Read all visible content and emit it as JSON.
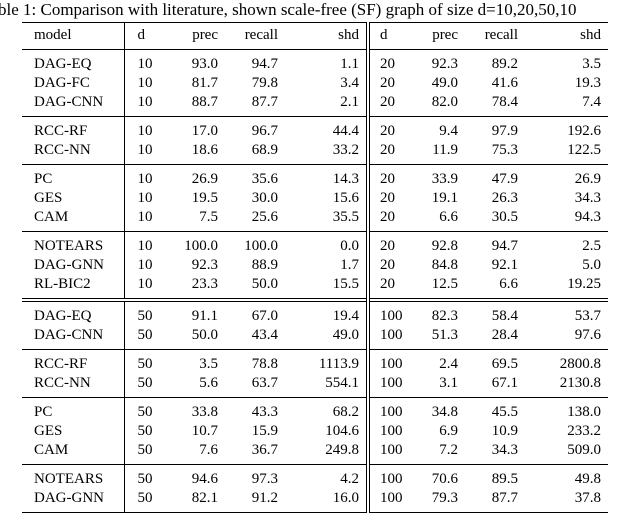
{
  "caption": "ble 1: Comparison with literature, shown scale-free (SF) graph of size d=10,20,50,10",
  "table": {
    "header": [
      "model",
      "d",
      "prec",
      "recall",
      "shd",
      "d",
      "prec",
      "recall",
      "shd"
    ],
    "sections": [
      [
        [
          [
            "DAG-EQ",
            "10",
            "93.0",
            "94.7",
            "1.1",
            "20",
            "92.3",
            "89.2",
            "3.5"
          ],
          [
            "DAG-FC",
            "10",
            "81.7",
            "79.8",
            "3.4",
            "20",
            "49.0",
            "41.6",
            "19.3"
          ],
          [
            "DAG-CNN",
            "10",
            "88.7",
            "87.7",
            "2.1",
            "20",
            "82.0",
            "78.4",
            "7.4"
          ]
        ],
        [
          [
            "RCC-RF",
            "10",
            "17.0",
            "96.7",
            "44.4",
            "20",
            "9.4",
            "97.9",
            "192.6"
          ],
          [
            "RCC-NN",
            "10",
            "18.6",
            "68.9",
            "33.2",
            "20",
            "11.9",
            "75.3",
            "122.5"
          ]
        ],
        [
          [
            "PC",
            "10",
            "26.9",
            "35.6",
            "14.3",
            "20",
            "33.9",
            "47.9",
            "26.9"
          ],
          [
            "GES",
            "10",
            "19.5",
            "30.0",
            "15.6",
            "20",
            "19.1",
            "26.3",
            "34.3"
          ],
          [
            "CAM",
            "10",
            "7.5",
            "25.6",
            "35.5",
            "20",
            "6.6",
            "30.5",
            "94.3"
          ]
        ],
        [
          [
            "NOTEARS",
            "10",
            "100.0",
            "100.0",
            "0.0",
            "20",
            "92.8",
            "94.7",
            "2.5"
          ],
          [
            "DAG-GNN",
            "10",
            "92.3",
            "88.9",
            "1.7",
            "20",
            "84.8",
            "92.1",
            "5.0"
          ],
          [
            "RL-BIC2",
            "10",
            "23.3",
            "50.0",
            "15.5",
            "20",
            "12.5",
            "6.6",
            "19.25"
          ]
        ]
      ],
      [
        [
          [
            "DAG-EQ",
            "50",
            "91.1",
            "67.0",
            "19.4",
            "100",
            "82.3",
            "58.4",
            "53.7"
          ],
          [
            "DAG-CNN",
            "50",
            "50.0",
            "43.4",
            "49.0",
            "100",
            "51.3",
            "28.4",
            "97.6"
          ]
        ],
        [
          [
            "RCC-RF",
            "50",
            "3.5",
            "78.8",
            "1113.9",
            "100",
            "2.4",
            "69.5",
            "2800.8"
          ],
          [
            "RCC-NN",
            "50",
            "5.6",
            "63.7",
            "554.1",
            "100",
            "3.1",
            "67.1",
            "2130.8"
          ]
        ],
        [
          [
            "PC",
            "50",
            "33.8",
            "43.3",
            "68.2",
            "100",
            "34.8",
            "45.5",
            "138.0"
          ],
          [
            "GES",
            "50",
            "10.7",
            "15.9",
            "104.6",
            "100",
            "6.9",
            "10.9",
            "233.2"
          ],
          [
            "CAM",
            "50",
            "7.6",
            "36.7",
            "249.8",
            "100",
            "7.2",
            "34.3",
            "509.0"
          ]
        ],
        [
          [
            "NOTEARS",
            "50",
            "94.6",
            "97.3",
            "4.2",
            "100",
            "70.6",
            "89.5",
            "49.8"
          ],
          [
            "DAG-GNN",
            "50",
            "82.1",
            "91.2",
            "16.0",
            "100",
            "79.3",
            "87.7",
            "37.8"
          ]
        ]
      ]
    ]
  }
}
